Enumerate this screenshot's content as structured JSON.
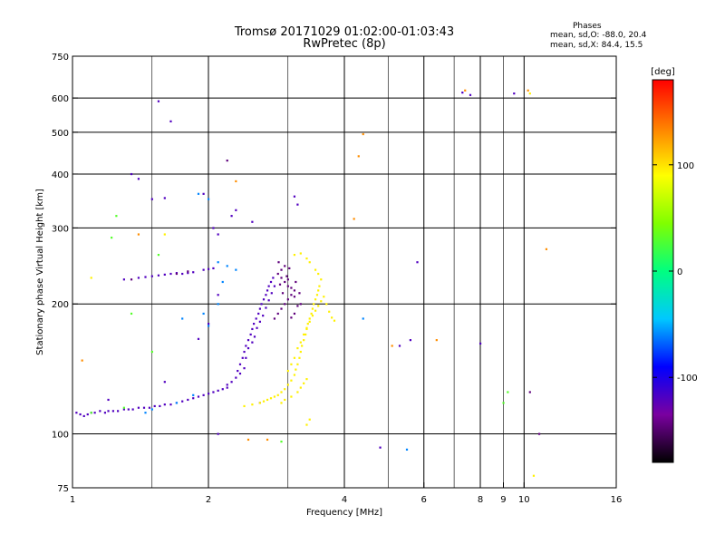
{
  "chart_data": {
    "type": "scatter",
    "title": "Tromsø 20171029 01:02:00-01:03:43",
    "subtitle": "RwPretec (8p)",
    "stats": {
      "header": "Phases",
      "o_mode": "mean, sd,O: -88.0, 20.4",
      "x_mode": "mean, sd,X:  84.4, 15.5"
    },
    "xlabel": "Frequency [MHz]",
    "ylabel": "Stationary phase Virtual Height [km]",
    "x_scale": "log",
    "y_scale": "log",
    "xlim": [
      1,
      16
    ],
    "ylim": [
      75,
      750
    ],
    "x_ticks": [
      {
        "value": 1,
        "label": "1"
      },
      {
        "value": 2,
        "label": "2"
      },
      {
        "value": 4,
        "label": "4"
      },
      {
        "value": 6,
        "label": "6"
      },
      {
        "value": 8,
        "label": "8"
      },
      {
        "value": 9,
        "label": "9"
      },
      {
        "value": 10,
        "label": "10"
      },
      {
        "value": 16,
        "label": "16"
      }
    ],
    "x_grid_major": [
      2,
      4,
      6,
      8,
      10
    ],
    "x_grid_minor": [
      1.5,
      3,
      5,
      7,
      9
    ],
    "y_ticks": [
      {
        "value": 75,
        "label": "75"
      },
      {
        "value": 100,
        "label": "100"
      },
      {
        "value": 200,
        "label": "200"
      },
      {
        "value": 300,
        "label": "300"
      },
      {
        "value": 400,
        "label": "400"
      },
      {
        "value": 500,
        "label": "500"
      },
      {
        "value": 600,
        "label": "600"
      },
      {
        "value": 750,
        "label": "750"
      }
    ],
    "y_grid": [
      100,
      200,
      300,
      400,
      500,
      600
    ],
    "grid": true,
    "colorbar": {
      "label": "[deg]",
      "min": -180,
      "max": 180,
      "ticks": [
        {
          "value": 100,
          "label": "100"
        },
        {
          "value": 0,
          "label": "0"
        },
        {
          "value": -100,
          "label": "-100"
        }
      ],
      "colors": [
        "#000000",
        "#7a00a0",
        "#0000ff",
        "#00c8ff",
        "#00ff80",
        "#80ff00",
        "#ffff00",
        "#ff8000",
        "#ff0000"
      ]
    },
    "series": [
      {
        "phase": -120,
        "points": [
          [
            1.02,
            112
          ],
          [
            1.04,
            111
          ],
          [
            1.06,
            110
          ],
          [
            1.08,
            111
          ],
          [
            1.1,
            112
          ],
          [
            1.12,
            112
          ],
          [
            1.15,
            113
          ],
          [
            1.18,
            112
          ],
          [
            1.2,
            113
          ],
          [
            1.23,
            113
          ],
          [
            1.26,
            113
          ],
          [
            1.3,
            114
          ],
          [
            1.33,
            114
          ],
          [
            1.36,
            114
          ],
          [
            1.4,
            115
          ],
          [
            1.44,
            115
          ],
          [
            1.48,
            115
          ],
          [
            1.52,
            116
          ],
          [
            1.56,
            116
          ],
          [
            1.6,
            117
          ],
          [
            1.65,
            117
          ],
          [
            1.7,
            118
          ],
          [
            1.75,
            119
          ],
          [
            1.8,
            120
          ],
          [
            1.85,
            121
          ],
          [
            1.9,
            122
          ],
          [
            1.95,
            123
          ],
          [
            2.0,
            124
          ],
          [
            2.05,
            125
          ],
          [
            2.1,
            126
          ],
          [
            2.15,
            127
          ],
          [
            2.2,
            128
          ],
          [
            1.4,
            230
          ],
          [
            1.45,
            231
          ],
          [
            1.5,
            232
          ],
          [
            1.55,
            233
          ],
          [
            1.6,
            234
          ],
          [
            1.65,
            235
          ],
          [
            1.7,
            236
          ],
          [
            1.75,
            235
          ],
          [
            1.8,
            236
          ],
          [
            1.85,
            237
          ],
          [
            1.95,
            240
          ],
          [
            2.0,
            241
          ],
          [
            2.05,
            242
          ],
          [
            1.3,
            228
          ],
          [
            2.2,
            130
          ],
          [
            2.25,
            132
          ],
          [
            2.3,
            135
          ],
          [
            2.32,
            140
          ],
          [
            2.35,
            145
          ],
          [
            2.38,
            150
          ],
          [
            2.4,
            155
          ],
          [
            2.42,
            160
          ],
          [
            2.45,
            165
          ],
          [
            2.48,
            170
          ],
          [
            2.5,
            175
          ],
          [
            2.52,
            180
          ],
          [
            2.55,
            185
          ],
          [
            2.58,
            190
          ],
          [
            2.6,
            195
          ],
          [
            2.62,
            200
          ],
          [
            2.65,
            205
          ],
          [
            2.68,
            210
          ],
          [
            2.7,
            215
          ],
          [
            2.72,
            220
          ],
          [
            2.75,
            225
          ],
          [
            2.78,
            230
          ],
          [
            2.35,
            138
          ],
          [
            2.4,
            142
          ],
          [
            2.42,
            150
          ],
          [
            2.45,
            158
          ],
          [
            2.5,
            163
          ],
          [
            2.53,
            168
          ],
          [
            2.56,
            176
          ],
          [
            2.6,
            182
          ],
          [
            2.64,
            188
          ],
          [
            2.68,
            196
          ],
          [
            2.72,
            204
          ],
          [
            2.76,
            212
          ],
          [
            2.8,
            220
          ],
          [
            1.35,
            400
          ],
          [
            1.4,
            390
          ],
          [
            1.5,
            350
          ],
          [
            1.6,
            352
          ],
          [
            1.55,
            590
          ],
          [
            1.65,
            530
          ],
          [
            1.95,
            360
          ],
          [
            2.05,
            300
          ],
          [
            2.1,
            290
          ],
          [
            2.3,
            330
          ],
          [
            2.25,
            320
          ],
          [
            2.5,
            310
          ],
          [
            3.1,
            355
          ],
          [
            3.15,
            340
          ],
          [
            5.8,
            250
          ],
          [
            5.3,
            160
          ],
          [
            5.6,
            165
          ],
          [
            7.3,
            618
          ],
          [
            7.6,
            610
          ],
          [
            9.5,
            615
          ],
          [
            8.0,
            162
          ],
          [
            4.8,
            93
          ],
          [
            1.2,
            120
          ],
          [
            1.6,
            132
          ],
          [
            2.1,
            210
          ],
          [
            2.0,
            180
          ],
          [
            1.9,
            166
          ],
          [
            2.6,
            118
          ],
          [
            2.1,
            100
          ]
        ]
      },
      {
        "phase": -145,
        "points": [
          [
            2.8,
            185
          ],
          [
            2.85,
            190
          ],
          [
            2.9,
            195
          ],
          [
            2.95,
            200
          ],
          [
            3.0,
            205
          ],
          [
            3.05,
            210
          ],
          [
            3.1,
            215
          ],
          [
            3.0,
            220
          ],
          [
            2.95,
            225
          ],
          [
            2.9,
            230
          ],
          [
            2.85,
            235
          ],
          [
            2.9,
            240
          ],
          [
            2.95,
            245
          ],
          [
            3.0,
            228
          ],
          [
            3.05,
            218
          ],
          [
            3.1,
            208
          ],
          [
            3.15,
            198
          ],
          [
            3.1,
            190
          ],
          [
            3.05,
            186
          ],
          [
            2.92,
            212
          ],
          [
            2.88,
            222
          ],
          [
            2.98,
            232
          ],
          [
            3.02,
            242
          ],
          [
            2.86,
            250
          ],
          [
            1.35,
            228
          ],
          [
            1.7,
            235
          ],
          [
            1.8,
            238
          ],
          [
            3.2,
            200
          ],
          [
            3.18,
            212
          ],
          [
            3.12,
            225
          ],
          [
            2.2,
            430
          ],
          [
            10.3,
            125
          ],
          [
            10.8,
            100
          ]
        ]
      },
      {
        "phase": 95,
        "points": [
          [
            2.6,
            118
          ],
          [
            2.65,
            119
          ],
          [
            2.7,
            120
          ],
          [
            2.75,
            121
          ],
          [
            2.8,
            122
          ],
          [
            2.85,
            123
          ],
          [
            2.9,
            125
          ],
          [
            2.95,
            127
          ],
          [
            3.0,
            130
          ],
          [
            3.05,
            133
          ],
          [
            3.1,
            137
          ],
          [
            3.12,
            141
          ],
          [
            3.15,
            145
          ],
          [
            3.18,
            150
          ],
          [
            3.2,
            155
          ],
          [
            3.22,
            160
          ],
          [
            3.25,
            165
          ],
          [
            3.28,
            170
          ],
          [
            3.3,
            175
          ],
          [
            3.32,
            180
          ],
          [
            3.35,
            185
          ],
          [
            3.38,
            190
          ],
          [
            3.4,
            195
          ],
          [
            3.42,
            200
          ],
          [
            3.45,
            205
          ],
          [
            3.48,
            210
          ],
          [
            3.5,
            215
          ],
          [
            3.52,
            220
          ],
          [
            3.55,
            228
          ],
          [
            3.5,
            235
          ],
          [
            3.45,
            240
          ],
          [
            3.0,
            140
          ],
          [
            3.05,
            145
          ],
          [
            3.1,
            150
          ],
          [
            3.15,
            158
          ],
          [
            3.2,
            163
          ],
          [
            3.25,
            170
          ],
          [
            3.3,
            176
          ],
          [
            3.35,
            182
          ],
          [
            3.4,
            188
          ],
          [
            3.45,
            193
          ],
          [
            3.5,
            198
          ],
          [
            3.55,
            203
          ],
          [
            3.6,
            208
          ],
          [
            3.65,
            200
          ],
          [
            3.7,
            192
          ],
          [
            3.75,
            186
          ],
          [
            3.8,
            183
          ],
          [
            2.9,
            118
          ],
          [
            2.95,
            120
          ],
          [
            3.05,
            122
          ],
          [
            3.15,
            125
          ],
          [
            3.2,
            128
          ],
          [
            3.25,
            131
          ],
          [
            3.3,
            134
          ],
          [
            2.4,
            116
          ],
          [
            2.5,
            117
          ],
          [
            3.1,
            260
          ],
          [
            3.2,
            262
          ],
          [
            3.3,
            255
          ],
          [
            3.35,
            250
          ],
          [
            3.3,
            105
          ],
          [
            3.35,
            108
          ],
          [
            1.6,
            290
          ],
          [
            1.1,
            230
          ],
          [
            10.3,
            615
          ],
          [
            10.5,
            80
          ]
        ]
      },
      {
        "phase": 130,
        "points": [
          [
            2.3,
            385
          ],
          [
            2.45,
            97
          ],
          [
            2.7,
            97
          ],
          [
            4.4,
            495
          ],
          [
            4.2,
            315
          ],
          [
            4.3,
            440
          ],
          [
            7.4,
            625
          ],
          [
            10.2,
            625
          ],
          [
            11.2,
            268
          ],
          [
            6.4,
            165
          ],
          [
            5.1,
            160
          ],
          [
            1.4,
            290
          ],
          [
            1.05,
            148
          ]
        ]
      },
      {
        "phase": 30,
        "points": [
          [
            1.25,
            320
          ],
          [
            1.22,
            285
          ],
          [
            1.5,
            155
          ],
          [
            1.35,
            190
          ],
          [
            1.3,
            115
          ],
          [
            1.1,
            112
          ],
          [
            2.9,
            96
          ],
          [
            9.2,
            125
          ],
          [
            9.0,
            118
          ],
          [
            1.55,
            260
          ]
        ]
      },
      {
        "phase": -60,
        "points": [
          [
            1.45,
            112
          ],
          [
            1.5,
            114
          ],
          [
            1.7,
            118
          ],
          [
            1.85,
            123
          ],
          [
            1.9,
            360
          ],
          [
            2.0,
            350
          ],
          [
            2.1,
            250
          ],
          [
            2.2,
            245
          ],
          [
            2.3,
            240
          ],
          [
            1.95,
            190
          ],
          [
            2.0,
            178
          ],
          [
            1.75,
            185
          ],
          [
            2.1,
            200
          ],
          [
            2.15,
            225
          ],
          [
            5.5,
            92
          ],
          [
            4.4,
            185
          ]
        ]
      }
    ]
  }
}
